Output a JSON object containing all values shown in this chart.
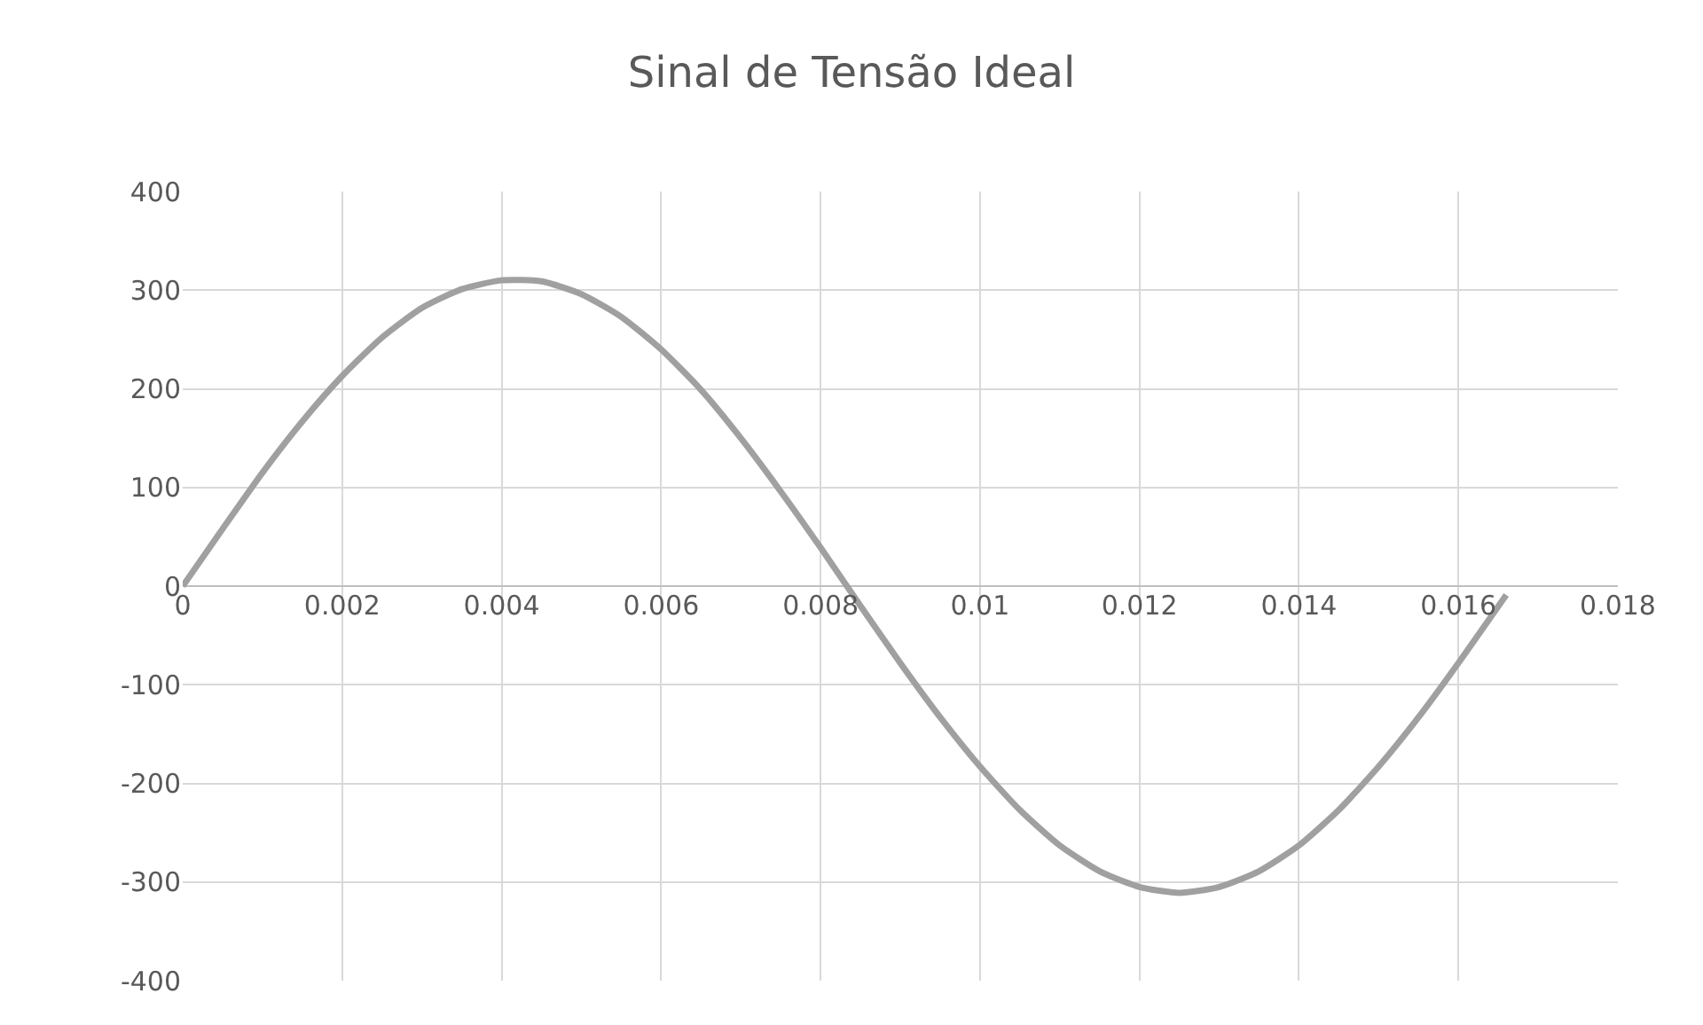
{
  "chart_data": {
    "type": "line",
    "title": "Sinal de Tensão Ideal",
    "series": [
      {
        "color": "#a0a0a0",
        "x": [
          0,
          0.0005,
          0.001,
          0.0015,
          0.002,
          0.0025,
          0.003,
          0.0035,
          0.004,
          0.0045,
          0.005,
          0.0055,
          0.006,
          0.0065,
          0.007,
          0.0075,
          0.008,
          0.0085,
          0.009,
          0.0095,
          0.01,
          0.0105,
          0.011,
          0.0115,
          0.012,
          0.0125,
          0.013,
          0.0135,
          0.014,
          0.0145,
          0.015,
          0.0155,
          0.016,
          0.0166
        ],
        "values": [
          0,
          58,
          115,
          167,
          213,
          252,
          282,
          301,
          310,
          309,
          296,
          273,
          240,
          199,
          150,
          96,
          39,
          -20,
          -78,
          -133,
          -183,
          -227,
          -263,
          -289,
          -305,
          -311,
          -305,
          -289,
          -263,
          -227,
          -183,
          -133,
          -78,
          -9
        ]
      }
    ],
    "xlim": [
      0,
      0.018
    ],
    "xticks": [
      0,
      0.002,
      0.004,
      0.006,
      0.008,
      0.01,
      0.012,
      0.014,
      0.016,
      0.018
    ],
    "ylim": [
      -400,
      400
    ],
    "yticks": [
      -400,
      -300,
      -200,
      -100,
      0,
      100,
      200,
      300,
      400
    ],
    "grid": true,
    "marker": "none",
    "line_style": "solid"
  }
}
